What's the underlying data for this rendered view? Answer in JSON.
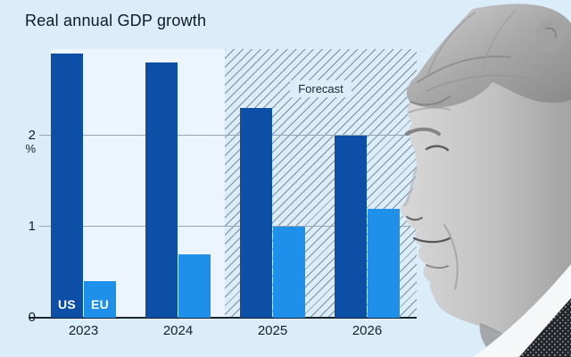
{
  "header": {
    "title": "Real annual GDP growth"
  },
  "chart_data": {
    "type": "bar",
    "title": "Real annual GDP growth",
    "xlabel": "",
    "ylabel": "%",
    "categories": [
      "2023",
      "2024",
      "2025",
      "2026"
    ],
    "series": [
      {
        "name": "US",
        "values": [
          2.9,
          2.8,
          2.3,
          2.0
        ],
        "color": "#0d4ea6"
      },
      {
        "name": "EU",
        "values": [
          0.4,
          0.7,
          1.0,
          1.2
        ],
        "color": "#1e90ea"
      }
    ],
    "yticks": [
      0,
      1,
      2
    ],
    "ylim": [
      0,
      3.0
    ],
    "grid": "horizontal gridlines at 1 and 2",
    "legend_position": "inline labels inside first pair of bars",
    "forecast": {
      "label": "Forecast",
      "categories": [
        "2025",
        "2026"
      ]
    }
  },
  "colors": {
    "page_background": "#dcedfa",
    "plot_background": "#ecf5fd",
    "us_bar": "#0d4ea6",
    "eu_bar": "#1e90ea",
    "gridline": "#97a6b1",
    "axis": "#1a242e",
    "text": "#15202b"
  },
  "portrait": {
    "alt": "Grayscale side-profile photo of Donald Trump facing the chart"
  }
}
